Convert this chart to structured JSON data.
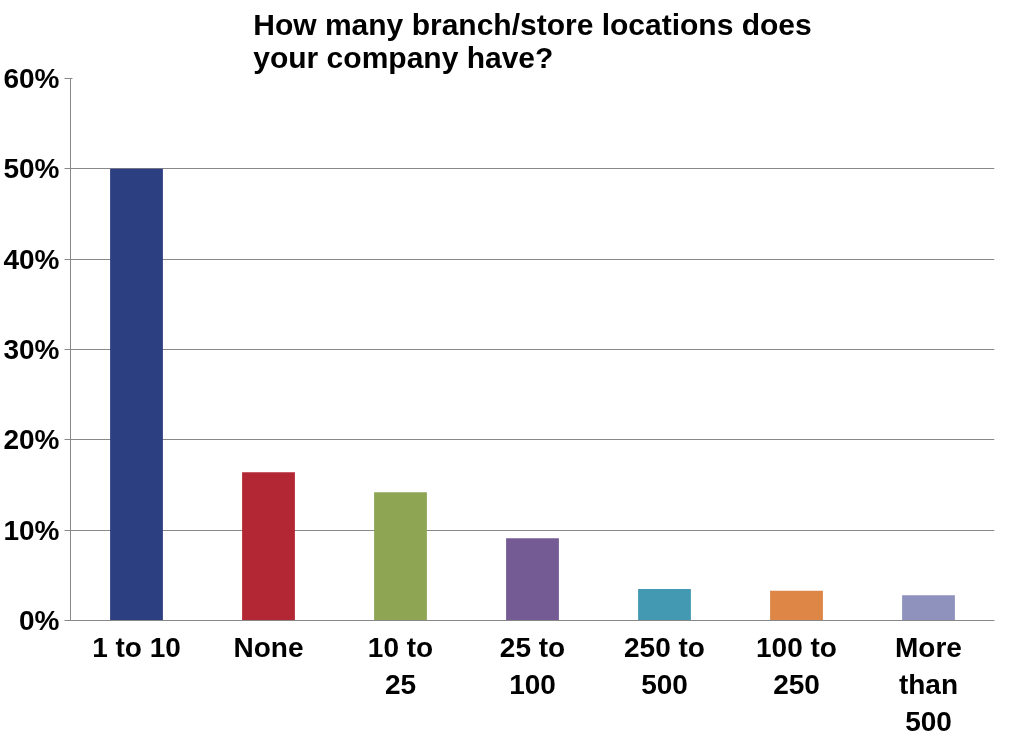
{
  "chart_data": {
    "type": "bar",
    "title": "How many branch/store locations does\nyour company have?",
    "categories": [
      "1 to 10",
      "None",
      "10 to\n25",
      "25 to\n100",
      "250 to\n500",
      "100 to\n250",
      "More\nthan\n500"
    ],
    "values": [
      50,
      16.4,
      14.2,
      9.1,
      3.5,
      3.3,
      2.8
    ],
    "colors": [
      "#2c3f80",
      "#b32734",
      "#8ea654",
      "#745b94",
      "#4399b2",
      "#dd8646",
      "#9092be"
    ],
    "ylim": [
      0,
      60
    ],
    "yticks": [
      {
        "value": 0,
        "label": "0%"
      },
      {
        "value": 10,
        "label": "10%"
      },
      {
        "value": 20,
        "label": "20%"
      },
      {
        "value": 30,
        "label": "30%"
      },
      {
        "value": 40,
        "label": "40%"
      },
      {
        "value": 50,
        "label": "50%"
      },
      {
        "value": 60,
        "label": "60%"
      }
    ],
    "grid": "y"
  }
}
